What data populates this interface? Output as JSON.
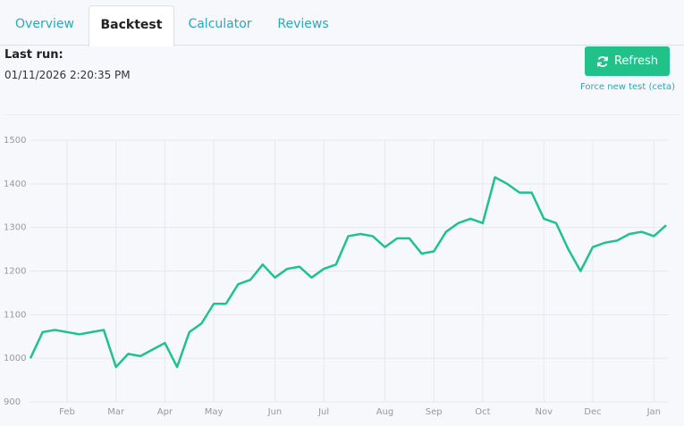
{
  "tabs": [
    "Overview",
    "Backtest",
    "Calculator",
    "Reviews"
  ],
  "last_run": {
    "label": "Last run:",
    "timestamp": "01/11/2026 2:20:35 PM"
  },
  "refresh_button": "Refresh",
  "force_link": "Force new test (ceta)",
  "chart_data": {
    "type": "line",
    "color": "#1fc18f",
    "grid": true,
    "categories": [
      null,
      null,
      null,
      "Feb",
      null,
      null,
      null,
      "Mar",
      null,
      null,
      null,
      "Apr",
      null,
      null,
      null,
      "May",
      null,
      null,
      null,
      null,
      "Jun",
      null,
      null,
      null,
      "Jul",
      null,
      null,
      null,
      null,
      "Aug",
      null,
      null,
      null,
      "Sep",
      null,
      null,
      null,
      "Oct",
      null,
      null,
      null,
      null,
      "Nov",
      null,
      null,
      null,
      "Dec",
      null,
      null,
      null,
      null,
      "Jan",
      null
    ],
    "values": [
      1000,
      1060,
      1065,
      1060,
      1055,
      1060,
      1065,
      980,
      1010,
      1005,
      1020,
      1035,
      980,
      1060,
      1080,
      1125,
      1125,
      1170,
      1180,
      1215,
      1185,
      1205,
      1210,
      1185,
      1205,
      1215,
      1280,
      1285,
      1280,
      1255,
      1275,
      1275,
      1240,
      1245,
      1290,
      1310,
      1320,
      1310,
      1415,
      1400,
      1380,
      1380,
      1320,
      1310,
      1250,
      1200,
      1255,
      1265,
      1270,
      1285,
      1290,
      1280,
      1305
    ],
    "ylim": [
      900,
      1500
    ],
    "yticks": [
      900,
      1000,
      1100,
      1200,
      1300,
      1400,
      1500
    ]
  }
}
